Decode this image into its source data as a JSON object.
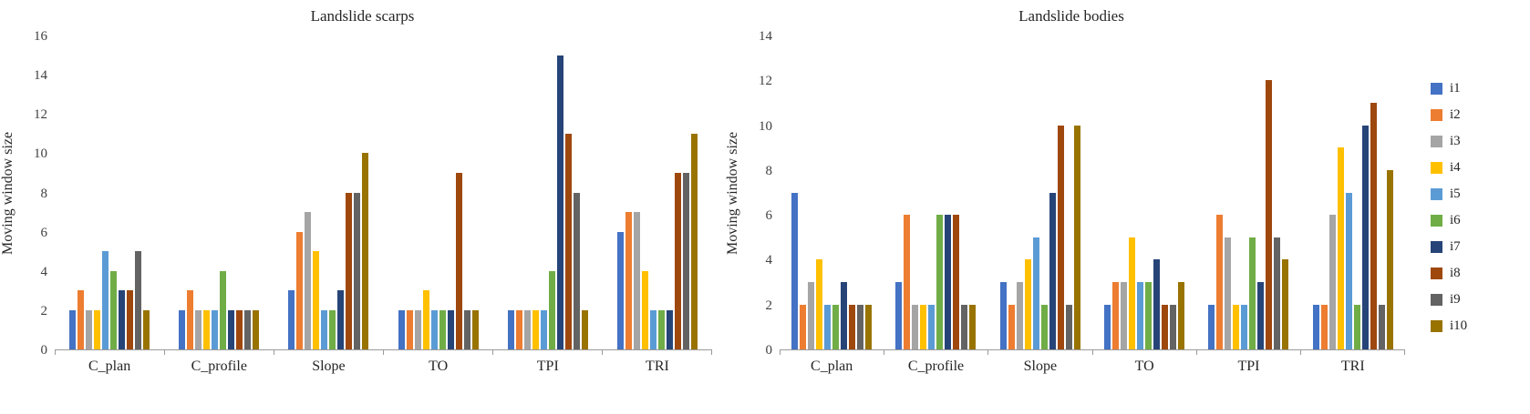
{
  "legend": {
    "items": [
      "i1",
      "i2",
      "i3",
      "i4",
      "i5",
      "i6",
      "i7",
      "i8",
      "i9",
      "i10"
    ]
  },
  "series_colors": [
    "#4472C4",
    "#ED7D31",
    "#A5A5A5",
    "#FFC000",
    "#5B9BD5",
    "#70AD47",
    "#264478",
    "#9E480E",
    "#636363",
    "#997300"
  ],
  "axis_color": "#9a9a9a",
  "chart_data": [
    {
      "type": "bar",
      "title": "Landslide scarps",
      "ylabel": "Moving window size",
      "xlabel": "",
      "ylim": [
        0,
        16
      ],
      "ytick": 2,
      "grid": false,
      "legend_position": "right-shared",
      "categories": [
        "C_plan",
        "C_profile",
        "Slope",
        "TO",
        "TPI",
        "TRI"
      ],
      "series": [
        {
          "name": "i1",
          "values": [
            2,
            2,
            3,
            2,
            2,
            6
          ]
        },
        {
          "name": "i2",
          "values": [
            3,
            3,
            6,
            2,
            2,
            7
          ]
        },
        {
          "name": "i3",
          "values": [
            2,
            2,
            7,
            2,
            2,
            7
          ]
        },
        {
          "name": "i4",
          "values": [
            2,
            2,
            5,
            3,
            2,
            4
          ]
        },
        {
          "name": "i5",
          "values": [
            5,
            2,
            2,
            2,
            2,
            2
          ]
        },
        {
          "name": "i6",
          "values": [
            4,
            4,
            2,
            2,
            4,
            2
          ]
        },
        {
          "name": "i7",
          "values": [
            3,
            2,
            3,
            2,
            15,
            2
          ]
        },
        {
          "name": "i8",
          "values": [
            3,
            2,
            8,
            9,
            11,
            9
          ]
        },
        {
          "name": "i9",
          "values": [
            5,
            2,
            8,
            2,
            8,
            9
          ]
        },
        {
          "name": "i10",
          "values": [
            2,
            2,
            10,
            2,
            2,
            11
          ]
        }
      ]
    },
    {
      "type": "bar",
      "title": "Landslide bodies",
      "ylabel": "Moving window size",
      "xlabel": "",
      "ylim": [
        0,
        14
      ],
      "ytick": 2,
      "grid": false,
      "legend_position": "right-shared",
      "categories": [
        "C_plan",
        "C_profile",
        "Slope",
        "TO",
        "TPI",
        "TRI"
      ],
      "series": [
        {
          "name": "i1",
          "values": [
            7,
            3,
            3,
            2,
            2,
            2
          ]
        },
        {
          "name": "i2",
          "values": [
            2,
            6,
            2,
            3,
            6,
            2
          ]
        },
        {
          "name": "i3",
          "values": [
            3,
            2,
            3,
            3,
            5,
            6
          ]
        },
        {
          "name": "i4",
          "values": [
            4,
            2,
            4,
            5,
            2,
            9
          ]
        },
        {
          "name": "i5",
          "values": [
            2,
            2,
            5,
            3,
            2,
            7
          ]
        },
        {
          "name": "i6",
          "values": [
            2,
            6,
            2,
            3,
            5,
            2
          ]
        },
        {
          "name": "i7",
          "values": [
            3,
            6,
            7,
            4,
            3,
            10
          ]
        },
        {
          "name": "i8",
          "values": [
            2,
            6,
            10,
            2,
            12,
            11
          ]
        },
        {
          "name": "i9",
          "values": [
            2,
            2,
            2,
            2,
            5,
            2
          ]
        },
        {
          "name": "i10",
          "values": [
            2,
            2,
            10,
            3,
            4,
            8
          ]
        }
      ]
    }
  ]
}
